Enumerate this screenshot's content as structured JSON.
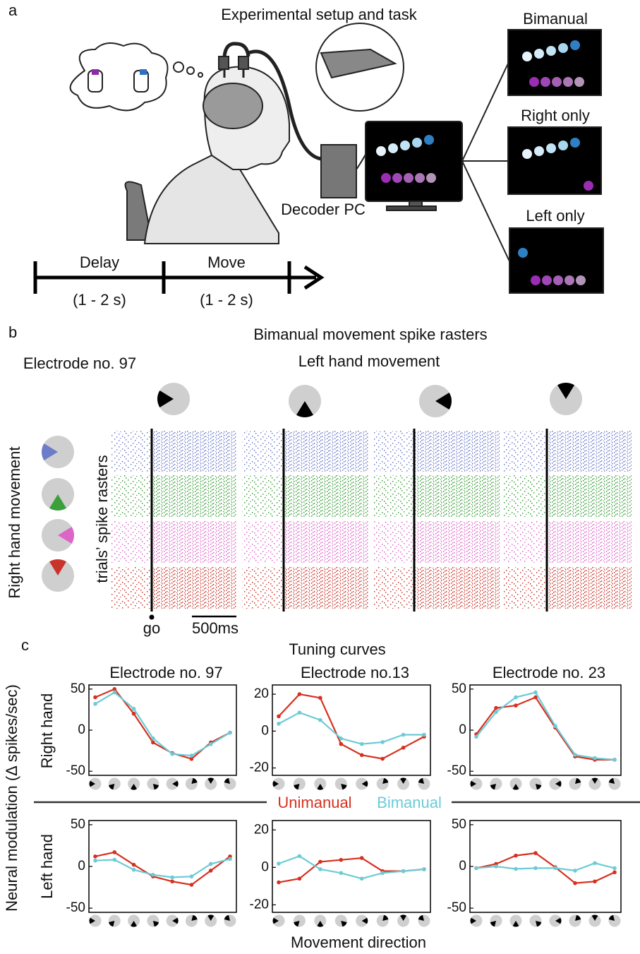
{
  "panel_a": {
    "label": "a",
    "title": "Experimental setup and task",
    "screens": [
      "Bimanual",
      "Right only",
      "Left only"
    ],
    "decoder": "Decoder PC",
    "timeline": [
      {
        "name": "Delay",
        "duration": "(1 - 2 s)"
      },
      {
        "name": "Move",
        "duration": "(1 - 2 s)"
      }
    ]
  },
  "panel_b": {
    "label": "b",
    "title": "Bimanual movement spike rasters",
    "electrode": "Electrode no. 97",
    "left_hand": "Left hand movement",
    "right_hand": "Right hand movement",
    "y_label": "trials’ spike rasters",
    "go": "go",
    "scale_bar": "500ms"
  },
  "panel_c": {
    "label": "c",
    "title": "Tuning curves",
    "y_label": "Neural modulation (Δ spikes/sec)",
    "row_labels": [
      "Right hand",
      "Left hand"
    ],
    "x_label": "Movement direction"
  },
  "chart_data": [
    {
      "type": "line",
      "title": "Electrode no. 97",
      "categories": [
        null,
        null,
        null,
        null,
        null,
        null,
        null,
        null
      ],
      "series": [
        {
          "name": "Unimanual",
          "color": "#d7301f",
          "values": [
            40,
            50,
            20,
            -15,
            -28,
            -35,
            -15,
            -3
          ]
        },
        {
          "name": "Bimanual",
          "color": "#6ccbd6",
          "values": [
            32,
            46,
            26,
            -10,
            -29,
            -31,
            -17,
            -3
          ]
        }
      ],
      "ylim": [
        -55,
        55
      ],
      "yticks": [
        -50,
        0,
        50
      ]
    },
    {
      "type": "line",
      "title": "Electrode no.13",
      "categories": [
        null,
        null,
        null,
        null,
        null,
        null,
        null,
        null
      ],
      "series": [
        {
          "color": "#d7301f",
          "values": [
            8,
            20,
            18,
            -7,
            -13,
            -15,
            -9,
            -3
          ]
        },
        {
          "color": "#6ccbd6",
          "values": [
            4,
            10,
            6,
            -4,
            -7,
            -6,
            -2,
            -2
          ]
        }
      ],
      "ylim": [
        -24,
        25
      ],
      "yticks": [
        -20,
        0,
        20
      ]
    },
    {
      "type": "line",
      "title": "Electrode no. 23",
      "categories": [
        null,
        null,
        null,
        null,
        null,
        null,
        null,
        null
      ],
      "series": [
        {
          "color": "#d7301f",
          "values": [
            -5,
            27,
            30,
            40,
            3,
            -32,
            -36,
            -36
          ]
        },
        {
          "color": "#6ccbd6",
          "values": [
            -8,
            22,
            40,
            46,
            5,
            -30,
            -34,
            -36
          ]
        }
      ],
      "ylim": [
        -55,
        55
      ],
      "yticks": [
        -50,
        0,
        50
      ]
    },
    {
      "type": "line",
      "categories": [
        null,
        null,
        null,
        null,
        null,
        null,
        null,
        null
      ],
      "series": [
        {
          "color": "#d7301f",
          "values": [
            12,
            17,
            2,
            -12,
            -18,
            -22,
            -5,
            12
          ]
        },
        {
          "color": "#6ccbd6",
          "values": [
            7,
            8,
            -4,
            -10,
            -13,
            -12,
            3,
            9
          ]
        }
      ],
      "ylim": [
        -55,
        55
      ],
      "yticks": [
        -50,
        0,
        50
      ]
    },
    {
      "type": "line",
      "categories": [
        null,
        null,
        null,
        null,
        null,
        null,
        null,
        null
      ],
      "series": [
        {
          "color": "#d7301f",
          "values": [
            -8,
            -6,
            3,
            4,
            5,
            -2,
            -2,
            -1
          ]
        },
        {
          "color": "#6ccbd6",
          "values": [
            2,
            6,
            -1,
            -3,
            -6,
            -3,
            -2,
            -1
          ]
        }
      ],
      "ylim": [
        -24,
        25
      ],
      "yticks": [
        -20,
        0,
        20
      ]
    },
    {
      "type": "line",
      "categories": [
        null,
        null,
        null,
        null,
        null,
        null,
        null,
        null
      ],
      "series": [
        {
          "color": "#d7301f",
          "values": [
            -2,
            3,
            13,
            16,
            -1,
            -20,
            -18,
            -7
          ]
        },
        {
          "color": "#6ccbd6",
          "values": [
            -2,
            0,
            -3,
            -2,
            -2,
            -5,
            4,
            -2
          ]
        }
      ],
      "ylim": [
        -55,
        55
      ],
      "yticks": [
        -50,
        0,
        50
      ]
    }
  ]
}
